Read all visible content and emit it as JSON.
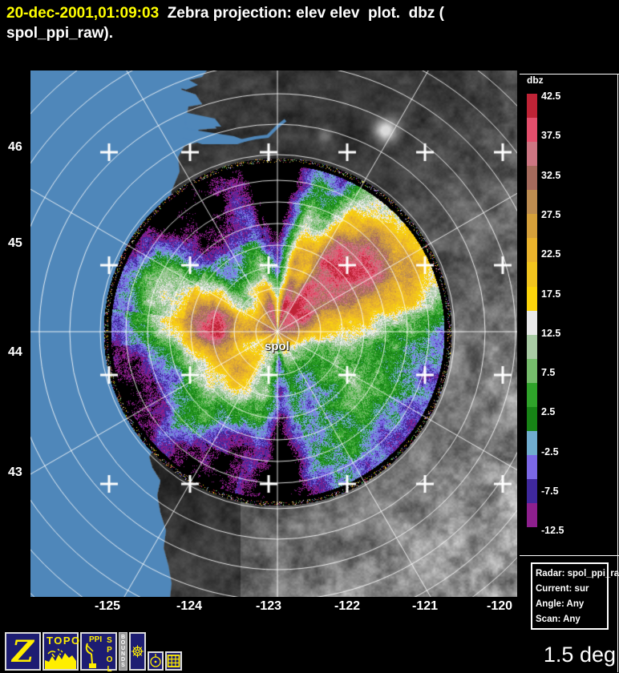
{
  "title": {
    "timestamp": "20-dec-2001,01:09:03",
    "line1": "  Zebra projection: elev elev  plot.  dbz (",
    "line2": "spol_ppi_raw)."
  },
  "map": {
    "lat_labels": [
      "46",
      "45",
      "44",
      "43"
    ],
    "lon_labels": [
      "-125",
      "-124",
      "-123",
      "-122",
      "-121",
      "-120"
    ],
    "site_label": "spol",
    "ocean_color": "#4f87ba",
    "grid_color": "#ffffff"
  },
  "colorbar": {
    "title": "dbz",
    "tick_labels": [
      "42.5",
      "37.5",
      "32.5",
      "27.5",
      "22.5",
      "17.5",
      "12.5",
      "7.5",
      "2.5",
      "-2.5",
      "-7.5",
      "-12.5"
    ],
    "segment_colors": [
      "#bf2336",
      "#e44e6c",
      "#cd7582",
      "#a56a5c",
      "#bd8c50",
      "#d6a03a",
      "#eab32c",
      "#f2c41e",
      "#fbd40c",
      "#e9e9e9",
      "#a9cba4",
      "#76bd6c",
      "#2fa32a",
      "#178316",
      "#70accf",
      "#7b68e6",
      "#3f289c",
      "#8d1f8d"
    ],
    "below_min_color": "#000000"
  },
  "radar_info": {
    "lines": [
      "Radar: spol_ppi_raw",
      "Current: sur",
      "Angle: Any",
      "Scan: Any"
    ]
  },
  "elevation_label": "1.5 deg",
  "toolbar": {
    "zebra": "Z",
    "topo": "TOPO",
    "ppi": "PPI",
    "spol": "SPOL",
    "bounds": "BOUNDS"
  }
}
